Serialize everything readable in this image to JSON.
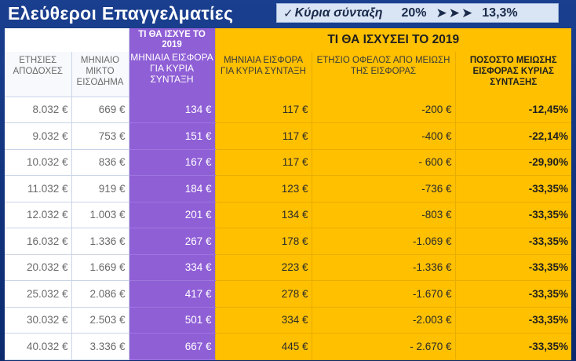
{
  "title": "Ελεύθεροι Επαγγελματίες",
  "banner": {
    "check": "✓",
    "label": "Κύρια σύνταξη",
    "from": "20%",
    "arrows": "➤➤➤",
    "to": "13,3%"
  },
  "groups": {
    "current": "ΤΙ ΘΑ ΙΣΧΥΕ ΤΟ 2019",
    "future": "ΤΙ ΘΑ ΙΣΧΥΣΕΙ ΤΟ 2019"
  },
  "columns": [
    "ΕΤΗΣΙΕΣ ΑΠΟΔΟΧΕΣ",
    "ΜΗΝΙΑΙΟ ΜΙΚΤΟ ΕΙΣΟΔΗΜΑ",
    "ΜΗΝΙΑΙΑ ΕΙΣΦΟΡΑ ΓΙΑ ΚΥΡΙΑ ΣΥΝΤΑΞΗ",
    "ΜΗΝΙΑΙΑ ΕΙΣΦΟΡΑ ΓΙΑ ΚΥΡΙΑ ΣΥΝΤΑΞΗ",
    "ΕΤΗΣΙΟ ΟΦΕΛΟΣ ΑΠΟ ΜΕΙΩΣΗ ΤΗΣ ΕΙΣΦΟΡΑΣ",
    "ΠΟΣΟΣΤΟ ΜΕΙΩΣΗΣ ΕΙΣΦΟΡΑΣ ΚΥΡΙΑΣ ΣΥΝΤΑΞΗΣ"
  ],
  "rows": [
    [
      "8.032 €",
      "669 €",
      "134 €",
      "117 €",
      "-200 €",
      "-12,45%"
    ],
    [
      "9.032 €",
      "753 €",
      "151 €",
      "117 €",
      "-400 €",
      "-22,14%"
    ],
    [
      "10.032 €",
      "836 €",
      "167 €",
      "117 €",
      "- 600 €",
      "-29,90%"
    ],
    [
      "11.032 €",
      "919 €",
      "184 €",
      "123 €",
      "-736 €",
      "-33,35%"
    ],
    [
      "12.032 €",
      "1.003 €",
      "201 €",
      "134 €",
      "-803 €",
      "-33,35%"
    ],
    [
      "16.032 €",
      "1.336 €",
      "267 €",
      "178 €",
      "-1.069 €",
      "-33,35%"
    ],
    [
      "20.032 €",
      "1.669 €",
      "334 €",
      "223 €",
      "-1.336 €",
      "-33,35%"
    ],
    [
      "25.032 €",
      "2.086 €",
      "417 €",
      "278 €",
      "-1.670 €",
      "-33,35%"
    ],
    [
      "30.032 €",
      "2.503 €",
      "501 €",
      "334 €",
      "-2.003 €",
      "-33,35%"
    ],
    [
      "40.032 €",
      "3.336 €",
      "667 €",
      "445 €",
      "- 2.670 €",
      "-33,35%"
    ]
  ]
}
